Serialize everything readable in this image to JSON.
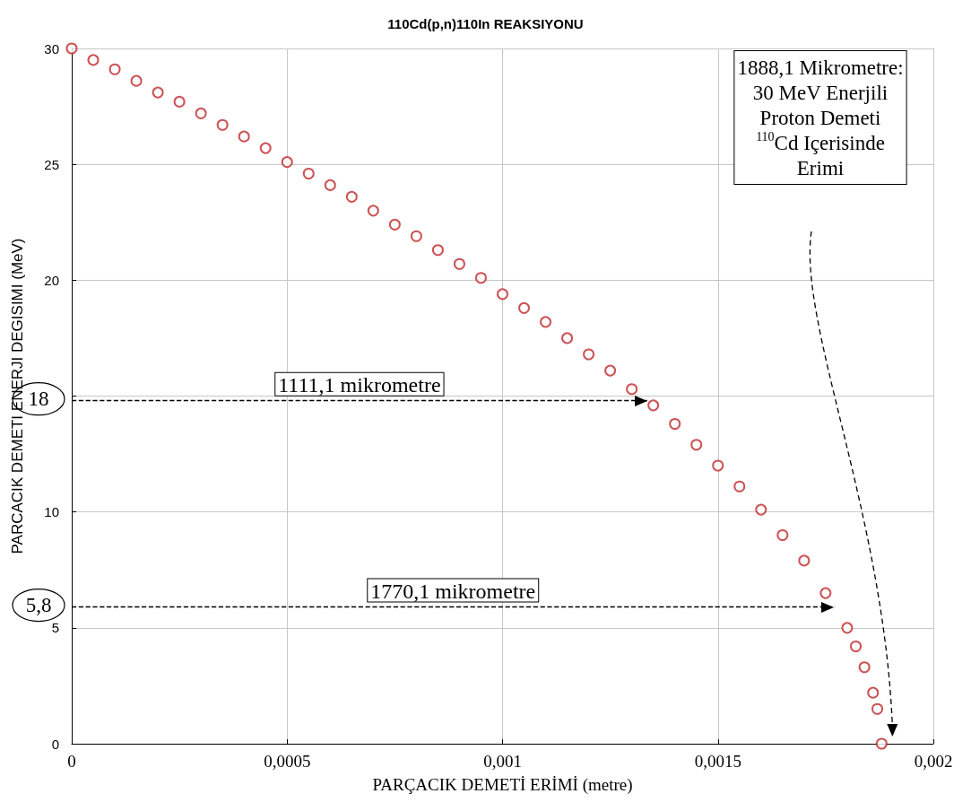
{
  "chart_data": {
    "type": "scatter",
    "title": "110Cd(p,n)110In REAKSIYONU",
    "xlabel": "PARÇACIK DEMETİ ERİMİ (metre)",
    "ylabel": "PARCACIK DEMETI ENERJI DEGISIMI (MeV)",
    "x": [
      0,
      5e-05,
      0.0001,
      0.00015,
      0.0002,
      0.00025,
      0.0003,
      0.00035,
      0.0004,
      0.00045,
      0.0005,
      0.00055,
      0.0006,
      0.00065,
      0.0007,
      0.00075,
      0.0008,
      0.00085,
      0.0009,
      0.00095,
      0.001,
      0.00105,
      0.0011,
      0.00115,
      0.0012,
      0.00125,
      0.0013,
      0.00135,
      0.0014,
      0.00145,
      0.0015,
      0.00155,
      0.0016,
      0.00165,
      0.0017,
      0.00175,
      0.0018,
      0.00182,
      0.00184,
      0.00186,
      0.00187,
      0.00188
    ],
    "series": [
      {
        "color": "#c0282a",
        "values": [
          30,
          29.5,
          29.1,
          28.6,
          28.1,
          27.7,
          27.2,
          26.7,
          26.2,
          25.7,
          25.1,
          24.6,
          24.1,
          23.6,
          23,
          22.4,
          21.9,
          21.3,
          20.7,
          20.1,
          19.4,
          18.8,
          18.2,
          17.5,
          16.8,
          16.1,
          15.3,
          14.6,
          13.8,
          12.9,
          12,
          11.1,
          10.1,
          9,
          7.9,
          6.5,
          5,
          4.2,
          3.3,
          2.2,
          1.5,
          0
        ]
      }
    ],
    "marker": "circle",
    "grid": true,
    "xlim": [
      0,
      0.002
    ],
    "xticks": [
      0,
      {
        "value": 0.0005,
        "label": "0,0005"
      },
      {
        "value": 0.001,
        "label": "0,001"
      },
      {
        "value": 0.0015,
        "label": "0,0015"
      },
      {
        "value": 0.002,
        "label": "0,002"
      }
    ],
    "ylim": [
      0,
      30
    ],
    "yticks": [
      0,
      5,
      10,
      {
        "value": 15,
        "label": null
      },
      20,
      25,
      30
    ],
    "ref_lines": [
      {
        "axis": "y",
        "value": 14.8,
        "label": "1111,1 mikrometre",
        "line_style": "dashed"
      },
      {
        "axis": "y",
        "value": 5.9,
        "label": "1770,1 mikrometre",
        "line_style": "dashed"
      }
    ],
    "annotations": [
      "18",
      "5,8",
      "1888,1 Mikrometre:\n30 MeV Enerjili\nProton Demeti\n$^{110}$Cd Içerisinde\nErimi"
    ]
  }
}
